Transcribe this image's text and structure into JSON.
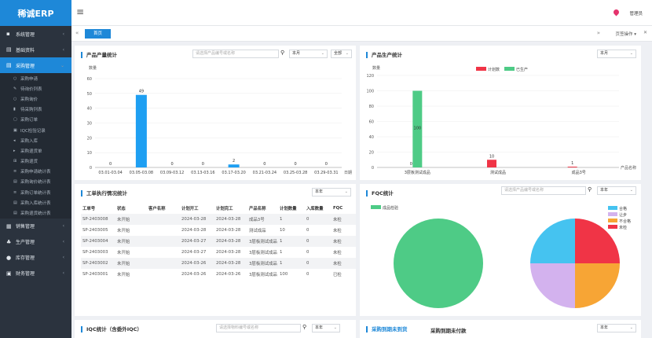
{
  "app": {
    "logo": "稀诚ERP",
    "user": "管理员"
  },
  "sidebar": {
    "groups_top": [
      {
        "label": "系统管理",
        "icon": "gear-icon",
        "glyph": "▪"
      },
      {
        "label": "基础资料",
        "icon": "list-icon",
        "glyph": "▤"
      }
    ],
    "active_group": {
      "label": "采购管理",
      "icon": "cart-icon",
      "glyph": "▤"
    },
    "sub_items": [
      {
        "label": "采购申请",
        "glyph": "○"
      },
      {
        "label": "待询价列表",
        "glyph": "✎"
      },
      {
        "label": "采购询价",
        "glyph": "○"
      },
      {
        "label": "待采购列表",
        "glyph": "▮"
      },
      {
        "label": "采购订单",
        "glyph": "▢"
      },
      {
        "label": "IQC检验记录",
        "glyph": "▣"
      },
      {
        "label": "采购入库",
        "glyph": "◂"
      },
      {
        "label": "采购退货单",
        "glyph": "▸"
      },
      {
        "label": "采购退货",
        "glyph": "⊞"
      },
      {
        "label": "采购申请统计表",
        "glyph": "≡"
      },
      {
        "label": "采购询价统计表",
        "glyph": "▤"
      },
      {
        "label": "采购订单统计表",
        "glyph": "≡"
      },
      {
        "label": "采购入库统计表",
        "glyph": "▤"
      },
      {
        "label": "采购退货统计表",
        "glyph": "▤"
      }
    ],
    "groups_bottom": [
      {
        "label": "销售管理",
        "icon": "sales-icon",
        "glyph": "▦"
      },
      {
        "label": "生产管理",
        "icon": "production-icon",
        "glyph": "♣"
      },
      {
        "label": "库存管理",
        "icon": "stock-icon",
        "glyph": "●"
      },
      {
        "label": "财务管理",
        "icon": "finance-icon",
        "glyph": "▣"
      }
    ]
  },
  "topbar": {
    "menu_icon": "≡"
  },
  "tabs": {
    "back": "«",
    "active": "首页",
    "forward": "»",
    "ops": "页签操作 ▾",
    "close": "✕"
  },
  "product_output": {
    "title": "产品产量统计",
    "search_placeholder": "请选择产品编号或名称",
    "period": "本月",
    "line": "全部"
  },
  "production_stats": {
    "title": "产品生产统计",
    "period": "本月"
  },
  "work_order": {
    "title": "工单执行情况统计",
    "period": "本年",
    "columns": [
      "工单号",
      "状态",
      "客户名称",
      "计划开工",
      "计划完工",
      "产品名称",
      "计划数量",
      "入库数量",
      "FQC"
    ],
    "rows": [
      [
        "SP-2403008",
        "未开始",
        "",
        "2024-03-28",
        "2024-03-28",
        "成品3号",
        "1",
        "0",
        "未检"
      ],
      [
        "SP-2403005",
        "未开始",
        "",
        "2024-03-28",
        "2024-03-28",
        "测试成品",
        "10",
        "0",
        "未检"
      ],
      [
        "SP-2403004",
        "未开始",
        "",
        "2024-03-27",
        "2024-03-28",
        "3层板测试成品",
        "1",
        "0",
        "未检"
      ],
      [
        "SP-2403003",
        "未开始",
        "",
        "2024-03-27",
        "2024-03-28",
        "3层板测试成品",
        "1",
        "0",
        "未检"
      ],
      [
        "SP-2403002",
        "未开始",
        "",
        "2024-03-26",
        "2024-03-28",
        "3层板测试成品",
        "1",
        "0",
        "未检"
      ],
      [
        "SP-2403001",
        "未开始",
        "",
        "2024-03-26",
        "2024-03-26",
        "3层板测试成品",
        "100",
        "0",
        "已检"
      ]
    ]
  },
  "fqc": {
    "title": "FQC统计",
    "search_placeholder": "请选择产品编号或名称",
    "period": "本年",
    "left_legend": "成品检验",
    "right_legend": [
      "合格",
      "让步",
      "不合格",
      "未检"
    ],
    "colors": {
      "pass": "#4ecb86",
      "green": "#4ecb86",
      "blue": "#45c3f0",
      "purple": "#d3b2ee",
      "orange": "#f7a535",
      "red": "#f03446"
    }
  },
  "bottom": {
    "iqc_title": "IQC统计（含委外IQC）",
    "iqc_placeholder": "请选择物料编号或名称",
    "iqc_period": "本年",
    "purchase_title": "采购到期未到货",
    "purchase_title2": "采购到期未付款",
    "purchase_period": "本年"
  },
  "chart_data": [
    {
      "type": "bar",
      "ylabel": "数量",
      "xlabel": "日期",
      "ylim": [
        0,
        60
      ],
      "yticks": [
        0,
        10,
        20,
        30,
        40,
        50,
        60
      ],
      "categories": [
        "03.01-03.04",
        "03.05-03.08",
        "03.09-03.12",
        "03.13-03.16",
        "03.17-03.20",
        "03.21-03.24",
        "03.25-03.28",
        "03.29-03.31"
      ],
      "values": [
        0,
        49,
        0,
        0,
        2,
        0,
        0,
        0
      ],
      "color": "#1e9ff2"
    },
    {
      "type": "bar",
      "ylabel": "数量",
      "xlabel": "产品名称",
      "ylim": [
        0,
        120
      ],
      "yticks": [
        0,
        20,
        40,
        60,
        80,
        100,
        120
      ],
      "categories": [
        "3层板测试成品",
        "测试成品",
        "成品3号"
      ],
      "legend": [
        "计划数",
        "已生产"
      ],
      "series": [
        {
          "name": "计划数",
          "values": [
            0,
            10,
            1
          ],
          "color": "#f03446"
        },
        {
          "name": "已生产",
          "values": [
            100,
            0,
            0
          ],
          "color": "#4ecb86"
        }
      ],
      "labels": {
        "已生产": [
          "100",
          "",
          ""
        ],
        "计划数": [
          "0",
          "10",
          "1"
        ]
      }
    },
    {
      "type": "pie",
      "series": [
        {
          "name": "成品检验",
          "values": [
            1
          ],
          "color": "#4ecb86"
        }
      ]
    },
    {
      "type": "pie",
      "categories": [
        "合格",
        "让步",
        "不合格",
        "未检"
      ],
      "values": [
        1,
        1,
        1,
        1
      ],
      "colors": [
        "#45c3f0",
        "#d3b2ee",
        "#f7a535",
        "#f03446"
      ]
    }
  ]
}
